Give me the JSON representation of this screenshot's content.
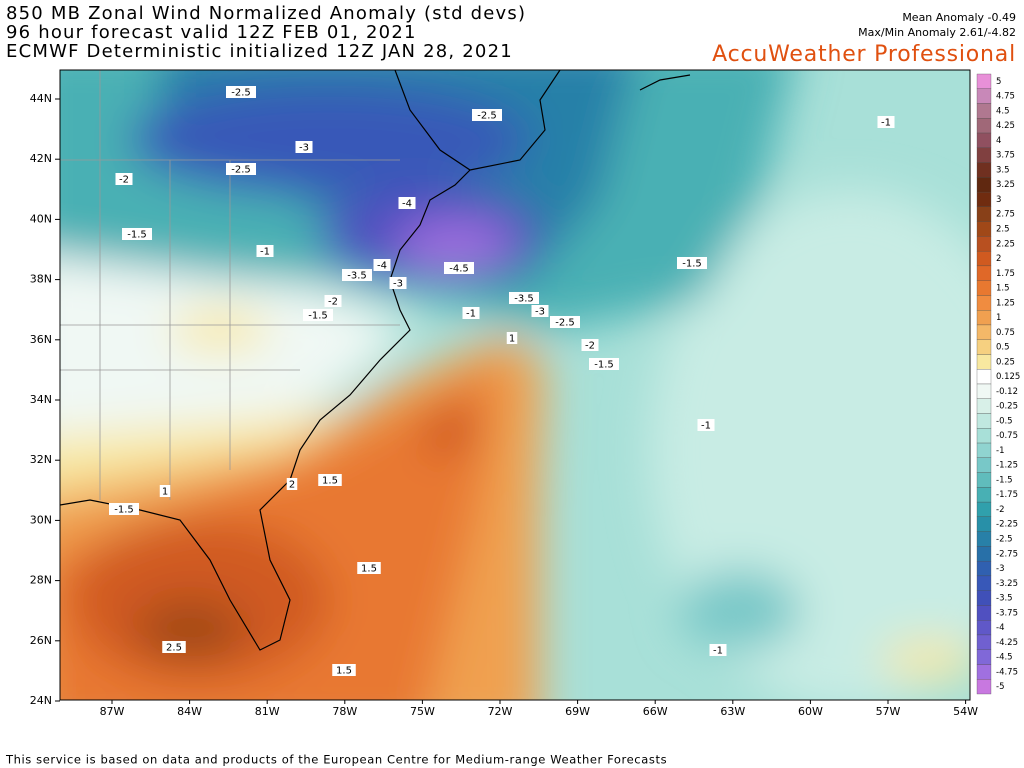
{
  "header": {
    "title_lines": [
      "850 MB Zonal Wind Normalized Anomaly (std devs)",
      "96 hour forecast valid 12Z FEB 01, 2021",
      "ECMWF Deterministic initialized 12Z JAN 28, 2021"
    ],
    "stats": [
      "Mean Anomaly -0.49",
      "Max/Min Anomaly 2.61/-4.82"
    ],
    "brand": "AccuWeather Professional"
  },
  "map": {
    "lat_labels": [
      "44N",
      "42N",
      "40N",
      "38N",
      "36N",
      "34N",
      "32N",
      "30N",
      "28N",
      "26N",
      "24N"
    ],
    "lon_labels": [
      "87W",
      "84W",
      "81W",
      "78W",
      "75W",
      "72W",
      "69W",
      "66W",
      "63W",
      "60W",
      "57W",
      "54W"
    ],
    "contour_labels": [
      "-2.5",
      "-2.5",
      "-1",
      "-3",
      "-2.5",
      "-2",
      "-4",
      "-1.5",
      "-1",
      "-4",
      "-4.5",
      "-1.5",
      "-3.5",
      "-3",
      "-2",
      "-3.5",
      "-1.5",
      "-1",
      "-3",
      "-2.5",
      "-2",
      "1",
      "-1.5",
      "-1",
      "2",
      "1.5",
      "1",
      "-1.5",
      "1.5",
      "2.5",
      "-1",
      "1.5"
    ]
  },
  "colorbar": {
    "labels": [
      "5",
      "4.75",
      "4.5",
      "4.25",
      "4",
      "3.75",
      "3.5",
      "3.25",
      "3",
      "2.75",
      "2.5",
      "2.25",
      "2",
      "1.75",
      "1.5",
      "1.25",
      "1",
      "0.75",
      "0.5",
      "0.25",
      "0.125",
      "-0.12",
      "-0.25",
      "-0.5",
      "-0.75",
      "-1",
      "-1.25",
      "-1.5",
      "-1.75",
      "-2",
      "-2.25",
      "-2.5",
      "-2.75",
      "-3",
      "-3.25",
      "-3.5",
      "-3.75",
      "-4",
      "-4.25",
      "-4.5",
      "-4.75",
      "-5"
    ],
    "colors": [
      "#e890d8",
      "#c888b8",
      "#b07890",
      "#a06878",
      "#905060",
      "#804040",
      "#703020",
      "#602810",
      "#702c10",
      "#884018",
      "#a04818",
      "#b85020",
      "#d05a20",
      "#e06828",
      "#e87830",
      "#f08c40",
      "#f0a050",
      "#f4b868",
      "#f6d080",
      "#f8e8a0",
      "#ffffff",
      "#f0f8f4",
      "#d8f0e8",
      "#c0e8e0",
      "#a8e0d8",
      "#90d4d0",
      "#78c8c8",
      "#60bcbc",
      "#48b0b4",
      "#30a0ac",
      "#2890a8",
      "#2880a8",
      "#2870a8",
      "#3060b0",
      "#3858b8",
      "#4050b8",
      "#5050c0",
      "#6058c8",
      "#7060d0",
      "#8068d8",
      "#a070e0",
      "#c878e0"
    ]
  },
  "footer": "This service is based on data and products of the European Centre for Medium-range Weather Forecasts"
}
